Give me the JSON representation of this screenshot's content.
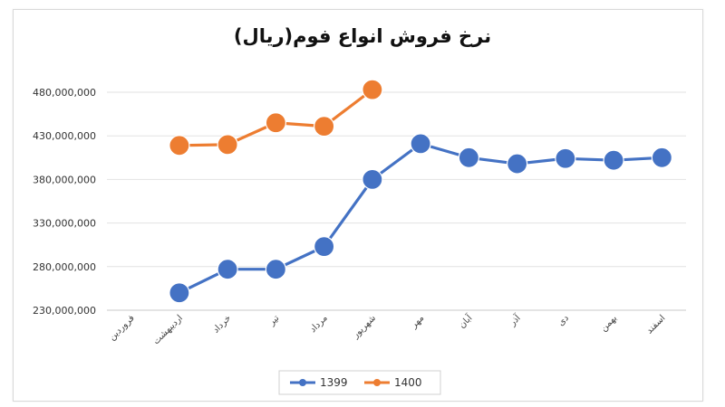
{
  "chart_data": {
    "type": "line",
    "title": "نرخ فروش انواع فوم(ریال)",
    "xlabel": "",
    "ylabel": "",
    "categories": [
      "فروردین",
      "اردیبهشت",
      "خرداد",
      "تیر",
      "مرداد",
      "شهریور",
      "مهر",
      "آبان",
      "آذر",
      "دی",
      "بهمن",
      "اسفند"
    ],
    "y_ticks": [
      "230,000,000",
      "280,000,000",
      "330,000,000",
      "380,000,000",
      "430,000,000",
      "480,000,000"
    ],
    "ylim": [
      230000000,
      480000000
    ],
    "grid": true,
    "legend_position": "bottom",
    "series": [
      {
        "name": "1399",
        "color": "#4472C4",
        "values": [
          null,
          250000000,
          277000000,
          277000000,
          303000000,
          380000000,
          421000000,
          405000000,
          398000000,
          404000000,
          402000000,
          405000000
        ]
      },
      {
        "name": "1400",
        "color": "#ED7D31",
        "values": [
          null,
          419000000,
          420000000,
          445000000,
          441000000,
          483000000,
          null,
          null,
          null,
          null,
          null,
          null
        ]
      }
    ]
  }
}
